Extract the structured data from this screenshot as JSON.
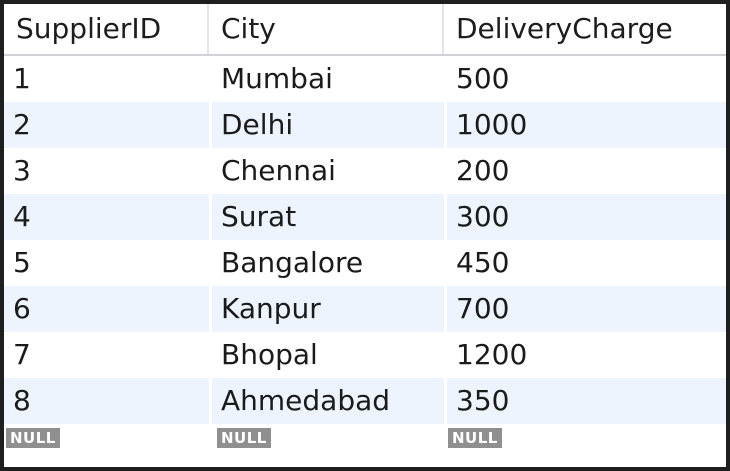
{
  "grid": {
    "columns": [
      "SupplierID",
      "City",
      "DeliveryCharge"
    ],
    "rows": [
      [
        "1",
        "Mumbai",
        "500"
      ],
      [
        "2",
        "Delhi",
        "1000"
      ],
      [
        "3",
        "Chennai",
        "200"
      ],
      [
        "4",
        "Surat",
        "300"
      ],
      [
        "5",
        "Bangalore",
        "450"
      ],
      [
        "6",
        "Kanpur",
        "700"
      ],
      [
        "7",
        "Bhopal",
        "1200"
      ],
      [
        "8",
        "Ahmedabad",
        "350"
      ]
    ],
    "null_row": [
      "NULL",
      "NULL",
      "NULL"
    ]
  }
}
